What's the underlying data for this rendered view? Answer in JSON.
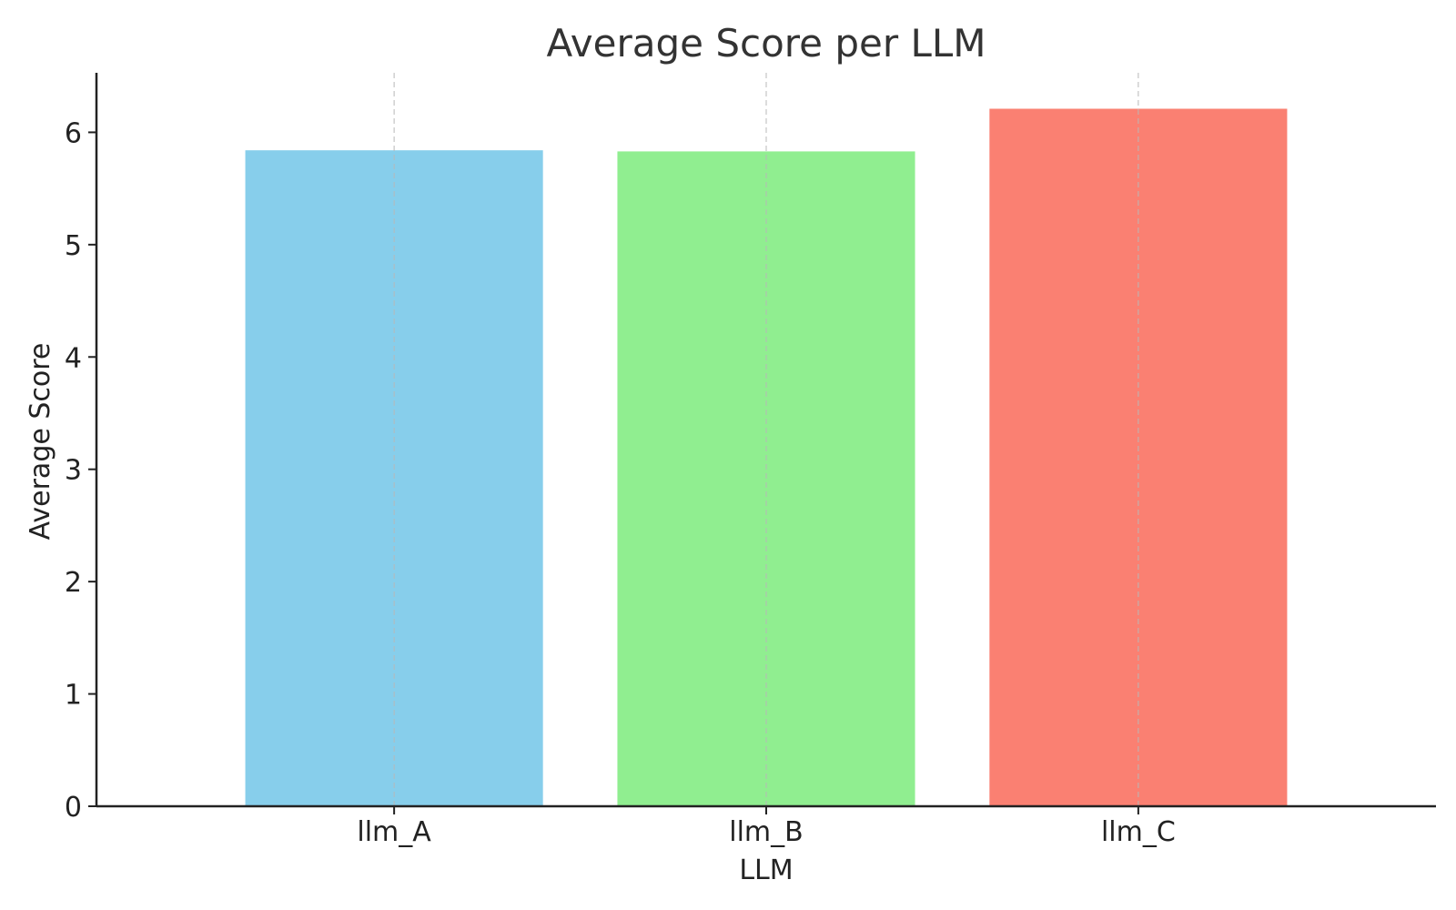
{
  "chart_data": {
    "type": "bar",
    "title": "Average Score per LLM",
    "xlabel": "LLM",
    "ylabel": "Average Score",
    "categories": [
      "llm_A",
      "llm_B",
      "llm_C"
    ],
    "values": [
      5.84,
      5.83,
      6.21
    ],
    "colors": [
      "#87ceeb",
      "#90ee90",
      "#fa8072"
    ],
    "ylim": [
      0,
      6.53
    ],
    "yticks": [
      0,
      1,
      2,
      3,
      4,
      5,
      6
    ],
    "grid": "x-dashed",
    "legend": "none"
  }
}
